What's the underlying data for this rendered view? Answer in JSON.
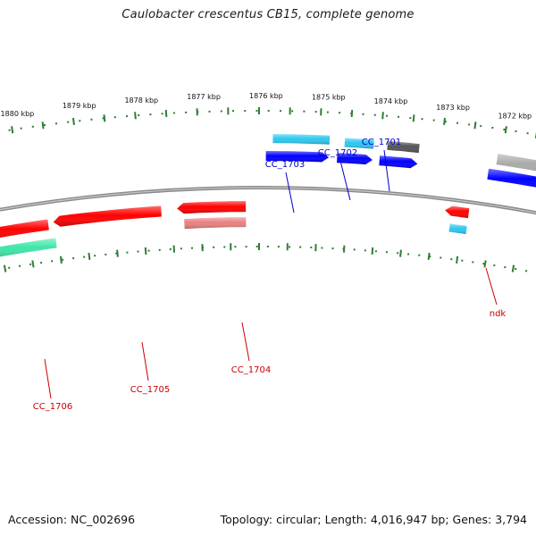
{
  "title": "Caulobacter crescentus CB15, complete genome",
  "footer": {
    "accession": "Accession: NC_002696",
    "summary": "Topology: circular; Length: 4,016,947 bp; Genes: 3,794"
  },
  "scale_labels": [
    "1872 kbp",
    "1873 kbp",
    "1874 kbp",
    "1875 kbp",
    "1876 kbp",
    "1877 kbp",
    "1878 kbp",
    "1879 kbp",
    "1880 kbp"
  ],
  "features": {
    "forward": [
      {
        "kind": "gene",
        "color": "#ff0000"
      },
      {
        "kind": "gene",
        "color": "#ff0000"
      },
      {
        "kind": "gene",
        "color": "#ff0000"
      },
      {
        "kind": "cds",
        "color": "#3fe6a8"
      },
      {
        "kind": "cds",
        "color": "#e88080"
      },
      {
        "kind": "cds",
        "color": "#2ec8f0"
      }
    ],
    "reverse": [
      {
        "kind": "cds",
        "color": "#2ec8f0"
      },
      {
        "kind": "cds",
        "color": "#2ec8f0"
      },
      {
        "kind": "cds",
        "color": "#555555"
      },
      {
        "kind": "cds",
        "color": "#aaaaaa"
      },
      {
        "kind": "gene",
        "color": "#0000ff"
      },
      {
        "kind": "gene",
        "color": "#0000ff"
      },
      {
        "kind": "gene",
        "color": "#0000ff"
      },
      {
        "kind": "gene",
        "color": "#0000ff"
      }
    ]
  },
  "labels": [
    {
      "text": "CC_1706",
      "color": "#cc0000"
    },
    {
      "text": "CC_1705",
      "color": "#cc0000"
    },
    {
      "text": "CC_1704",
      "color": "#cc0000"
    },
    {
      "text": "ndk",
      "color": "#cc0000"
    },
    {
      "text": "CC_1703",
      "color": "#0000cc"
    },
    {
      "text": "CC_1702",
      "color": "#0000cc"
    },
    {
      "text": "CC_1701",
      "color": "#0000cc"
    }
  ],
  "colors": {
    "backbone": "#8a8a8a",
    "ruler": "#2e7d32"
  }
}
